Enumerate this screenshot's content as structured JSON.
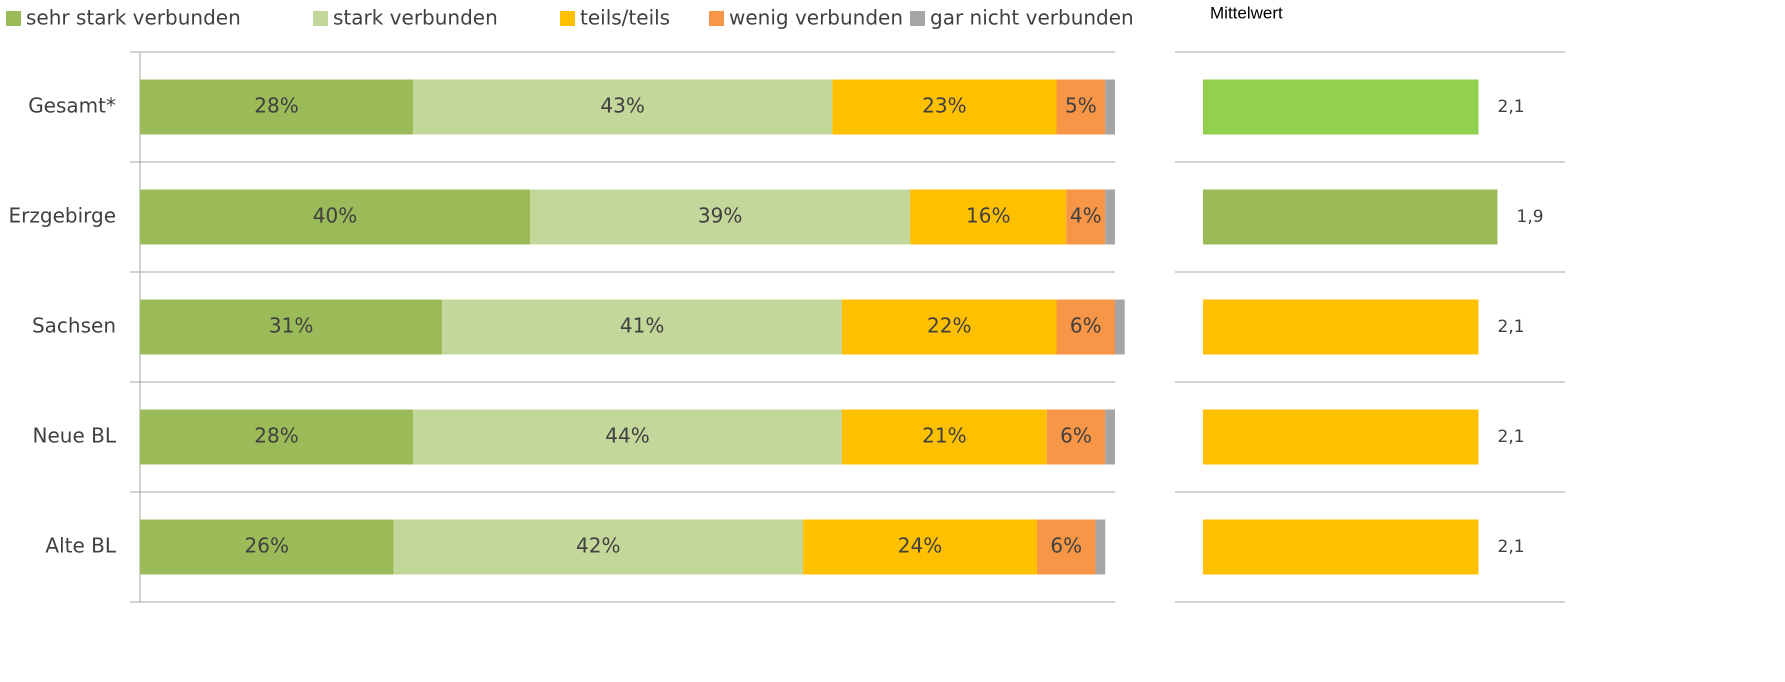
{
  "chart_data": [
    {
      "type": "stacked_bar_horizontal",
      "categories": [
        "Gesamt*",
        "Erzgebirge",
        "Sachsen",
        "Neue BL",
        "Alte BL"
      ],
      "series": [
        {
          "name": "sehr stark verbunden",
          "color": "#9bbb59",
          "values": [
            28,
            40,
            31,
            28,
            26
          ],
          "value_labels": [
            "28%",
            "40%",
            "31%",
            "28%",
            "26%"
          ]
        },
        {
          "name": "stark verbunden",
          "color": "#c4d79b",
          "values": [
            43,
            39,
            41,
            44,
            42
          ],
          "value_labels": [
            "43%",
            "39%",
            "41%",
            "44%",
            "42%"
          ]
        },
        {
          "name": "teils/teils",
          "color": "#ffc000",
          "values": [
            23,
            16,
            22,
            21,
            24
          ],
          "value_labels": [
            "23%",
            "16%",
            "22%",
            "21%",
            "24%"
          ]
        },
        {
          "name": "wenig verbunden",
          "color": "#f79646",
          "values": [
            5,
            4,
            6,
            6,
            6
          ],
          "value_labels": [
            "5%",
            "4%",
            "6%",
            "6%",
            "6%"
          ]
        },
        {
          "name": "gar nicht verbunden",
          "color": "#a5a5a5",
          "values": [
            1,
            1,
            1,
            1,
            1
          ]
        }
      ],
      "xlim": [
        0,
        100
      ]
    },
    {
      "type": "bar_horizontal",
      "title": "Mittelwert",
      "values": [
        2.1,
        1.9,
        2.1,
        2.1,
        2.1
      ],
      "value_labels": [
        "2,1",
        "1,9",
        "2,1",
        "2,1",
        "2,1"
      ],
      "colors": [
        "#92d050",
        "#9bbb59",
        "#ffc000",
        "#ffc000",
        "#ffc000"
      ],
      "xlim": [
        5,
        1
      ]
    }
  ]
}
